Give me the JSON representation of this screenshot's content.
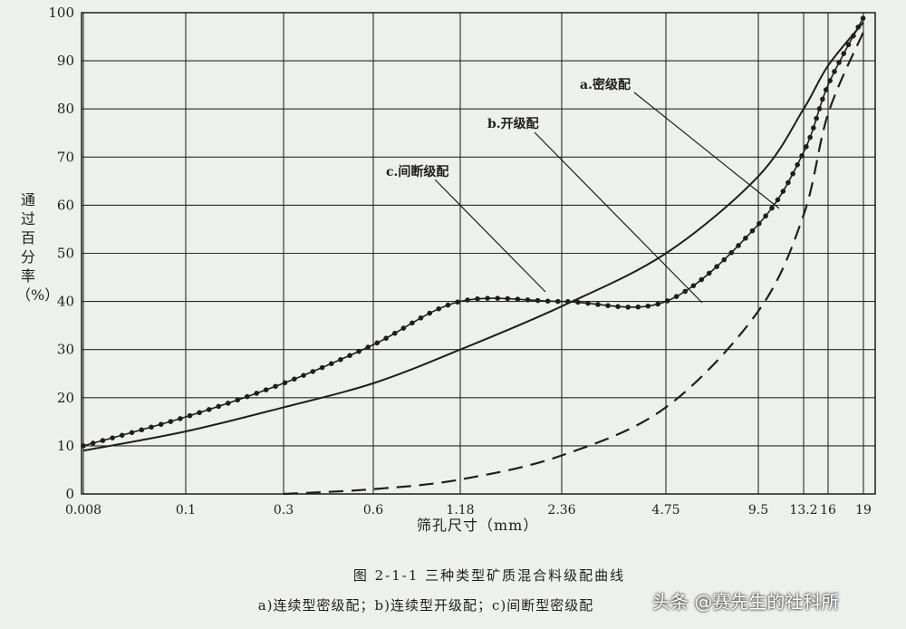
{
  "chart_data": {
    "type": "line",
    "xlabel": "筛孔尺寸（mm）",
    "ylabel": "通过百分率（%）",
    "x_ticks": [
      "0.008",
      "0.1",
      "0.3",
      "0.6",
      "1.18",
      "2.36",
      "4.75",
      "9.5",
      "13.2",
      "16",
      "19"
    ],
    "y_ticks": [
      0,
      10,
      20,
      30,
      40,
      50,
      60,
      70,
      80,
      90,
      100
    ],
    "ylim": [
      0,
      100
    ],
    "grid": true,
    "series": [
      {
        "name": "a.密级配",
        "style": "solid",
        "x": [
          "0.008",
          "0.1",
          "0.3",
          "0.6",
          "1.18",
          "2.36",
          "4.75",
          "9.5",
          "13.2",
          "16",
          "19"
        ],
        "values": [
          9,
          13,
          18,
          23,
          30,
          39,
          50,
          66,
          80,
          89,
          98
        ]
      },
      {
        "name": "b.开级配",
        "style": "dashed",
        "x": [
          "0.3",
          "0.6",
          "1.18",
          "2.36",
          "4.75",
          "9.5",
          "13.2",
          "16",
          "19"
        ],
        "values": [
          0,
          1,
          3,
          8,
          18,
          38,
          58,
          79,
          96
        ]
      },
      {
        "name": "c.间断级配",
        "style": "dotted",
        "x": [
          "0.008",
          "0.1",
          "0.3",
          "0.6",
          "1.18",
          "2.36",
          "4.75",
          "9.5",
          "13.2",
          "16",
          "19"
        ],
        "values": [
          10,
          16,
          23,
          31,
          40,
          40,
          40,
          56,
          71,
          85,
          99
        ]
      }
    ]
  },
  "figure": {
    "title": "图 2-1-1    三种类型矿质混合料级配曲线",
    "subtitle": "a)连续型密级配；b)连续型开级配；c)间断型密级配"
  },
  "watermark": "头条 @赛先生的社科所",
  "colors": {
    "background": "#eef0ec",
    "ink": "#1e1e1e",
    "grid": "#2a2a2a"
  }
}
